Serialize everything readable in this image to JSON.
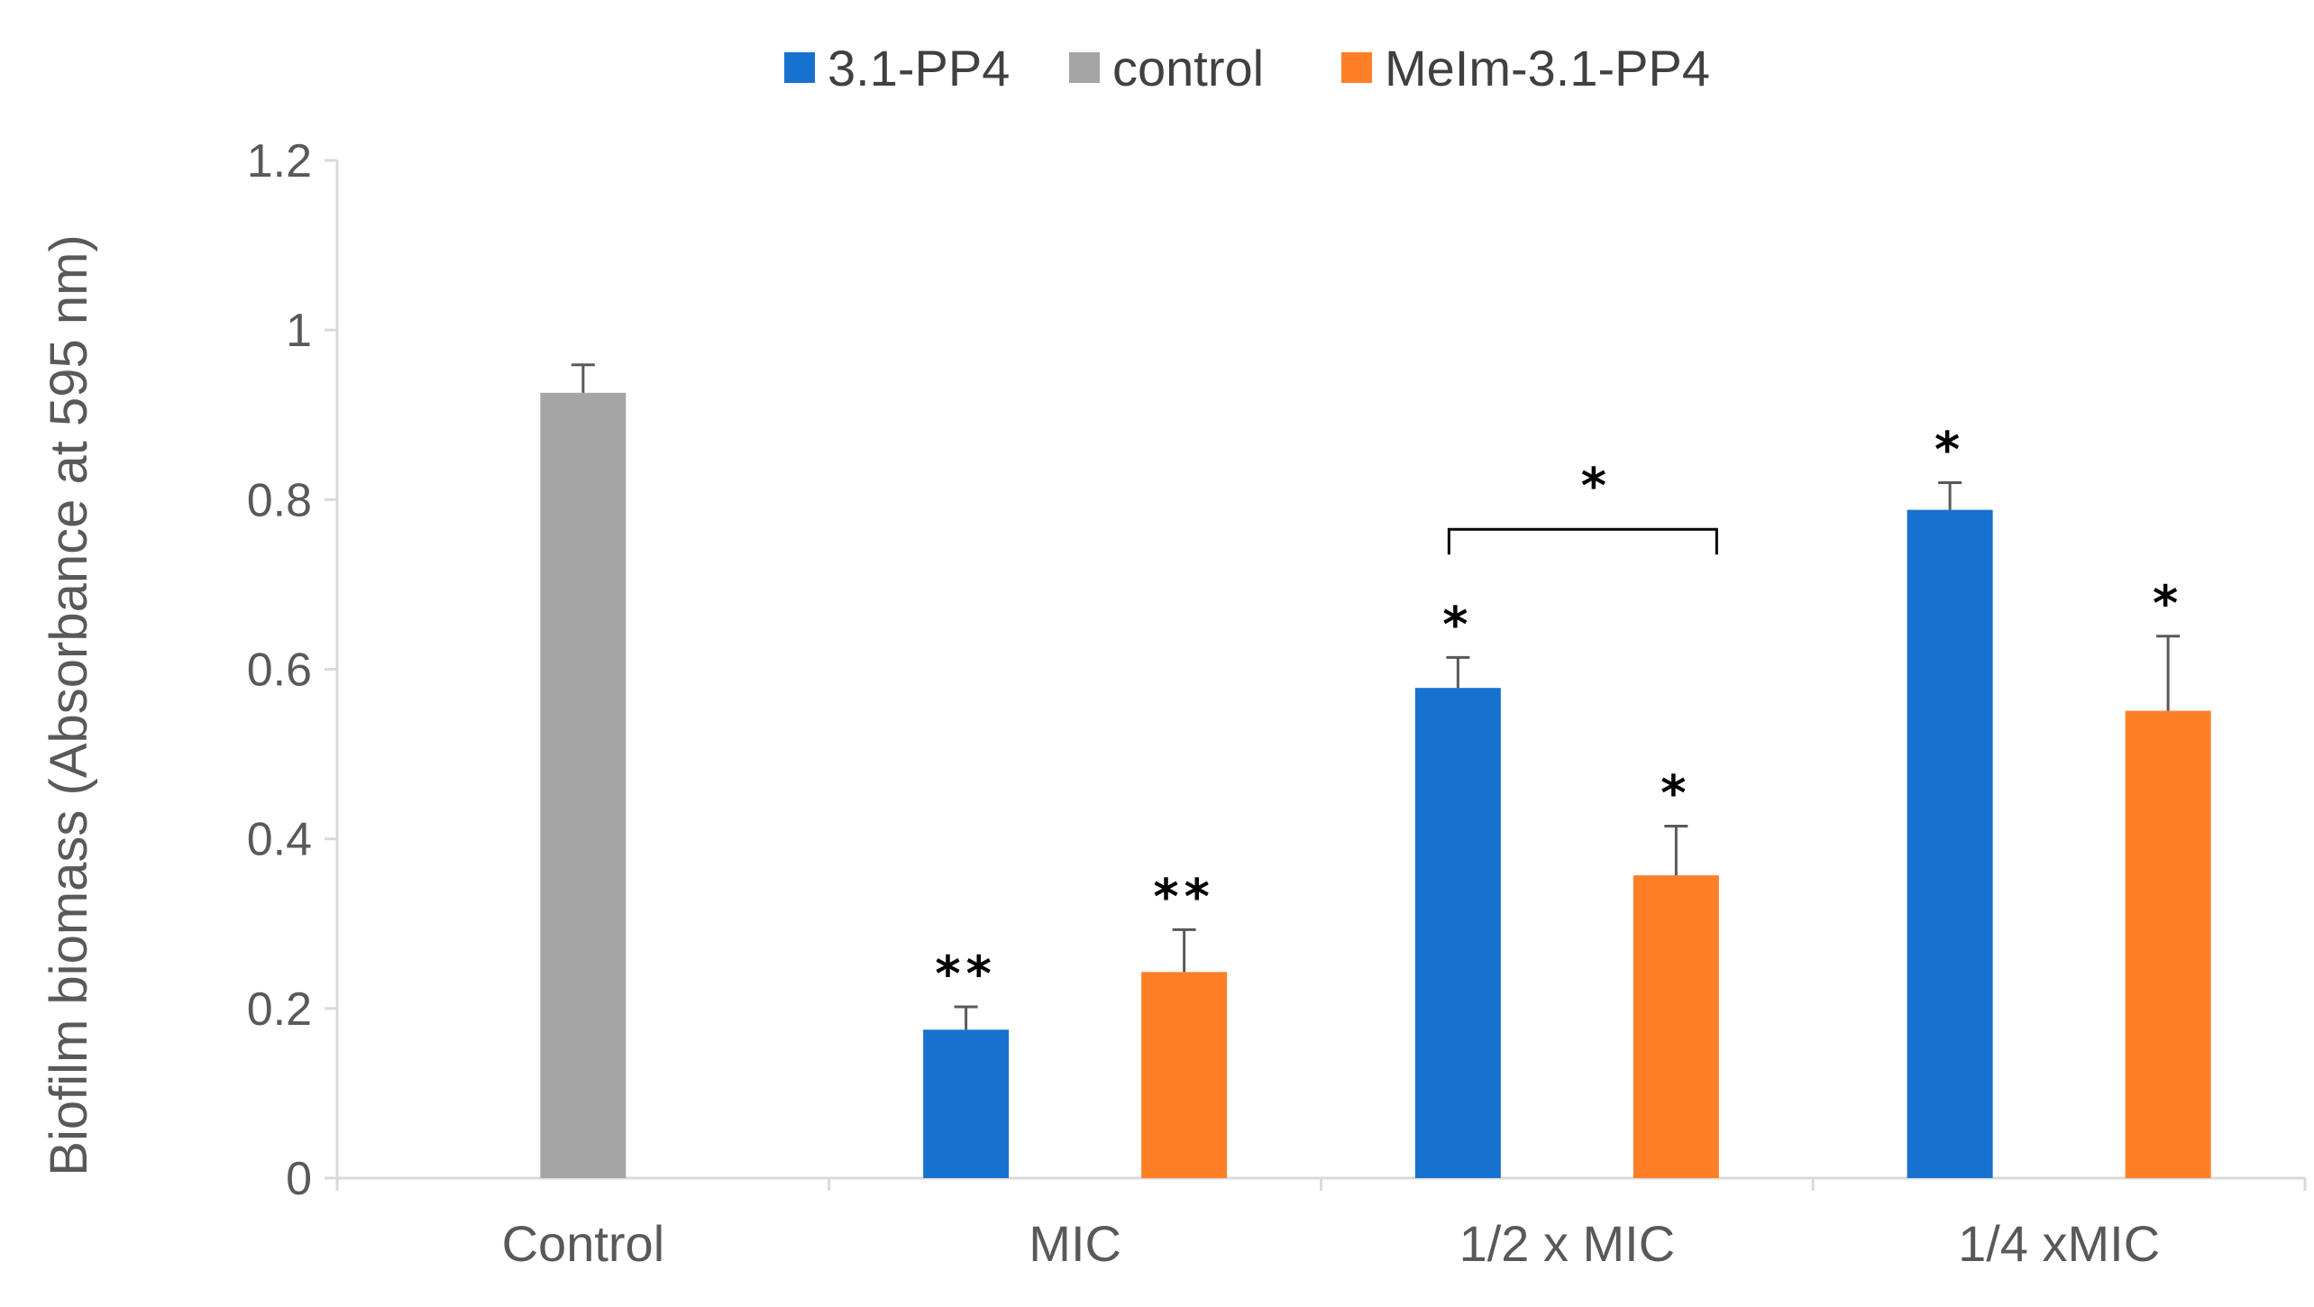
{
  "chart_data": {
    "type": "bar",
    "title": "",
    "xlabel": "",
    "ylabel": "Biofilm biomass (Absorbance at 595 nm)",
    "ylim": [
      0,
      1.2
    ],
    "yticks": [
      0,
      0.2,
      0.4,
      0.6,
      0.8,
      1,
      1.2
    ],
    "ytick_labels": [
      "0",
      "0.2",
      "0.4",
      "0.6",
      "0.8",
      "1",
      "1.2"
    ],
    "categories": [
      "Control",
      "MIC",
      "1/2 x MIC",
      "1/4 xMIC"
    ],
    "legend_position": "top-center",
    "grid": false,
    "series": [
      {
        "name": "3.1-PP4",
        "color": "#1772CF",
        "values": [
          null,
          0.175,
          0.578,
          0.788
        ],
        "errors": [
          null,
          0.027,
          0.036,
          0.032
        ],
        "significance": [
          "",
          "**",
          "*",
          "*"
        ]
      },
      {
        "name": "control",
        "color": "#A5A5A5",
        "values": [
          0.926,
          null,
          null,
          null
        ],
        "errors": [
          0.033,
          null,
          null,
          null
        ],
        "significance": [
          "",
          "",
          "",
          ""
        ]
      },
      {
        "name": "MeIm-3.1-PP4",
        "color": "#FF7F27",
        "values": [
          null,
          0.243,
          0.357,
          0.551
        ],
        "errors": [
          null,
          0.05,
          0.058,
          0.088
        ],
        "significance": [
          "",
          "**",
          "*",
          "*"
        ]
      }
    ],
    "brackets": [
      {
        "category": "1/2 x MIC",
        "from_series": "3.1-PP4",
        "to_series": "MeIm-3.1-PP4",
        "label": "*",
        "y": 0.765
      }
    ]
  }
}
